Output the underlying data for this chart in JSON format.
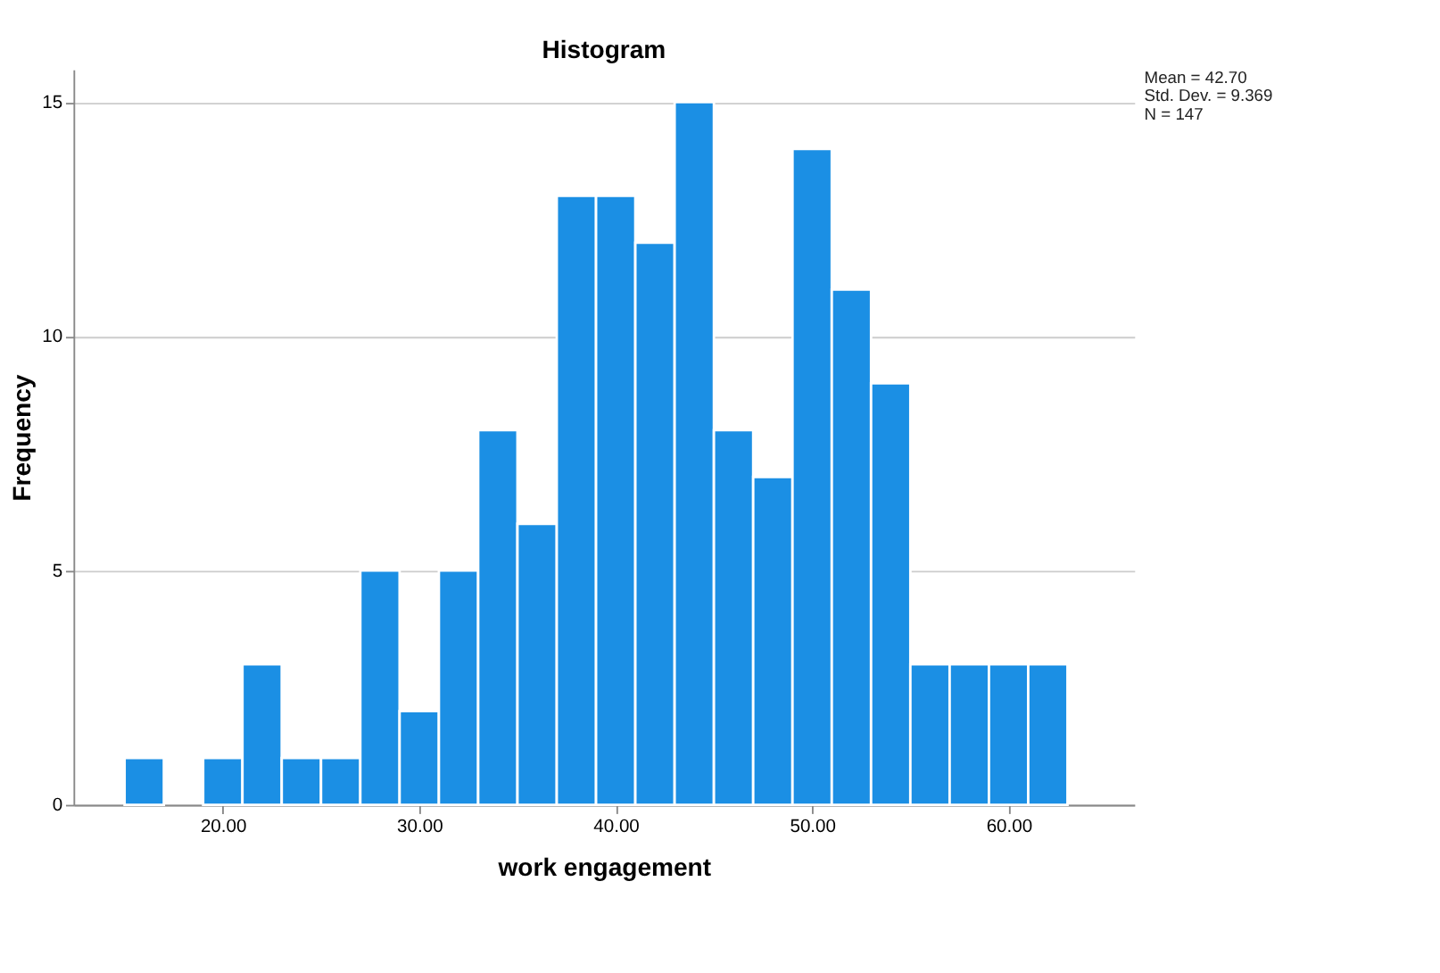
{
  "chart_data": {
    "type": "histogram",
    "title": "Histogram",
    "xlabel": "work engagement",
    "ylabel": "Frequency",
    "bins": [
      15,
      17,
      19,
      21,
      23,
      25,
      27,
      29,
      31,
      33,
      35,
      37,
      39,
      41,
      43,
      45,
      47,
      49,
      51,
      53,
      55,
      57,
      59,
      61,
      63
    ],
    "values": [
      1,
      0,
      1,
      3,
      1,
      1,
      5,
      2,
      5,
      8,
      6,
      13,
      13,
      12,
      15,
      8,
      7,
      14,
      11,
      9,
      3,
      3,
      3,
      3
    ],
    "color": "#1b8fe4",
    "xlim": [
      12.4,
      66.4
    ],
    "xticks": [
      {
        "value": 20,
        "label": "20.00"
      },
      {
        "value": 30,
        "label": "30.00"
      },
      {
        "value": 40,
        "label": "40.00"
      },
      {
        "value": 50,
        "label": "50.00"
      },
      {
        "value": 60,
        "label": "60.00"
      }
    ],
    "ylim": [
      0,
      15.7
    ],
    "yticks": [
      0,
      5,
      10,
      15
    ],
    "grid": "y",
    "annotations": [
      "Mean = 42.70",
      "Std. Dev. = 9.369",
      "N = 147"
    ]
  }
}
